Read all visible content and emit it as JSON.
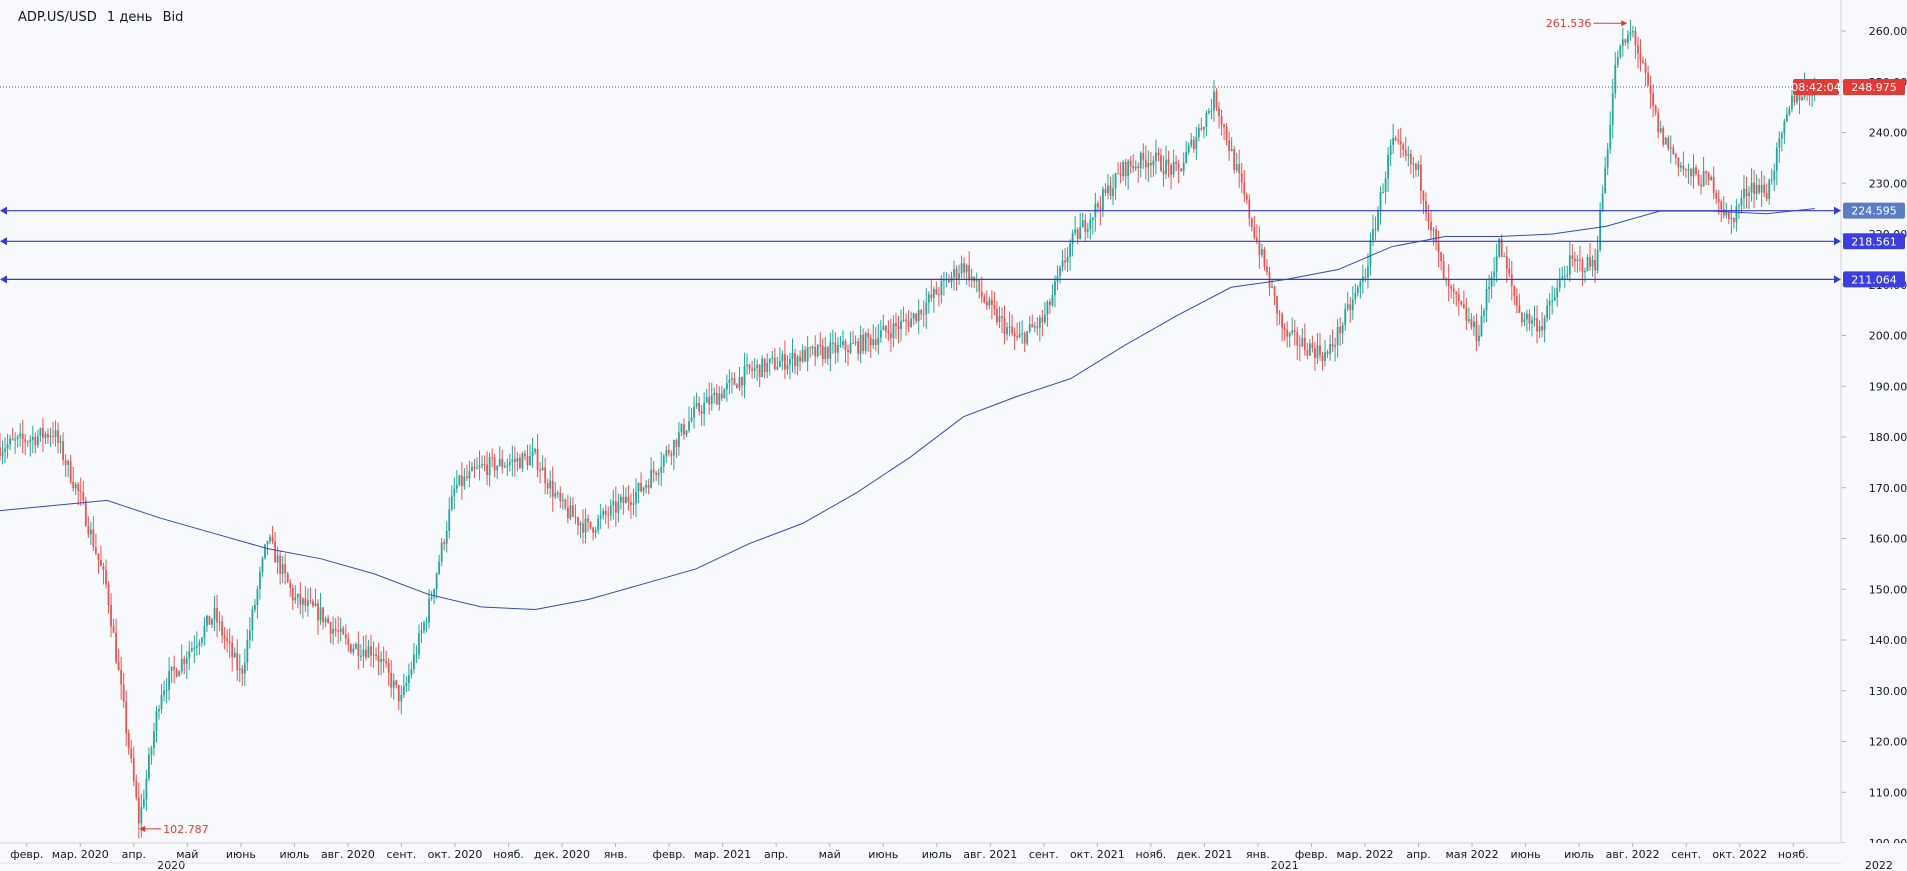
{
  "header": {
    "symbol": "ADP.US/USD",
    "interval": "1 день",
    "price_type": "Bid"
  },
  "price_panel": {
    "last_price": "248.975",
    "countdown": "08:42:04"
  },
  "colors": {
    "up": "#26a69a",
    "down": "#ef5350",
    "ma": "#2f4fae",
    "hline": "#2e3bd6",
    "grid": "#e0e3eb"
  },
  "chart_data": {
    "type": "candlestick",
    "y_axis": {
      "min": 100,
      "max": 265,
      "ticks": [
        100,
        110,
        120,
        130,
        140,
        150,
        160,
        170,
        180,
        190,
        200,
        210,
        220,
        230,
        240,
        250,
        260
      ],
      "tick_labels": [
        "100.00",
        "110.00",
        "120.00",
        "130.00",
        "140.00",
        "150.00",
        "160.00",
        "170.00",
        "180.00",
        "190.00",
        "200.00",
        "210.00",
        "220.00",
        "230.00",
        "240.00",
        "250.00",
        "260.00"
      ]
    },
    "x_axis": {
      "months": [
        "февр.",
        "мар. 2020",
        "апр.",
        "май",
        "июнь",
        "июль",
        "авг. 2020",
        "сент.",
        "окт. 2020",
        "нояб.",
        "дек. 2020",
        "янв.",
        "февр.",
        "мар. 2021",
        "апр.",
        "май",
        "июнь",
        "июль",
        "авг. 2021",
        "сент.",
        "окт. 2021",
        "нояб.",
        "дек. 2021",
        "янв.",
        "февр.",
        "мар. 2022",
        "апр.",
        "мая 2022",
        "июнь",
        "июль",
        "авг. 2022",
        "сент.",
        "окт. 2022",
        "нояб."
      ],
      "years": [
        "2020",
        "2021",
        "2022"
      ]
    },
    "price_trajectory": [
      {
        "t": 0,
        "v": 178
      },
      {
        "t": 1,
        "v": 181
      },
      {
        "t": 1.5,
        "v": 168
      },
      {
        "t": 2,
        "v": 150
      },
      {
        "t": 2.6,
        "v": 104
      },
      {
        "t": 3,
        "v": 130
      },
      {
        "t": 4,
        "v": 145
      },
      {
        "t": 4.5,
        "v": 133
      },
      {
        "t": 5,
        "v": 160
      },
      {
        "t": 5.5,
        "v": 148
      },
      {
        "t": 6,
        "v": 145
      },
      {
        "t": 6.5,
        "v": 139
      },
      {
        "t": 7,
        "v": 138
      },
      {
        "t": 7.5,
        "v": 128
      },
      {
        "t": 8,
        "v": 146
      },
      {
        "t": 8.5,
        "v": 170
      },
      {
        "t": 9,
        "v": 174
      },
      {
        "t": 10,
        "v": 176
      },
      {
        "t": 10.5,
        "v": 166
      },
      {
        "t": 11,
        "v": 162
      },
      {
        "t": 12,
        "v": 170
      },
      {
        "t": 13,
        "v": 185
      },
      {
        "t": 14,
        "v": 193
      },
      {
        "t": 15,
        "v": 196
      },
      {
        "t": 16,
        "v": 198
      },
      {
        "t": 17,
        "v": 203
      },
      {
        "t": 18,
        "v": 214
      },
      {
        "t": 18.5,
        "v": 205
      },
      {
        "t": 19,
        "v": 199
      },
      {
        "t": 19.5,
        "v": 203
      },
      {
        "t": 20,
        "v": 218
      },
      {
        "t": 21,
        "v": 233
      },
      {
        "t": 21.5,
        "v": 235
      },
      {
        "t": 22,
        "v": 232
      },
      {
        "t": 22.7,
        "v": 247
      },
      {
        "t": 23,
        "v": 236
      },
      {
        "t": 23.5,
        "v": 218
      },
      {
        "t": 24,
        "v": 200
      },
      {
        "t": 24.8,
        "v": 196
      },
      {
        "t": 25.5,
        "v": 212
      },
      {
        "t": 26,
        "v": 238
      },
      {
        "t": 26.5,
        "v": 232
      },
      {
        "t": 27,
        "v": 210
      },
      {
        "t": 27.6,
        "v": 200
      },
      {
        "t": 28,
        "v": 218
      },
      {
        "t": 28.4,
        "v": 204
      },
      {
        "t": 28.8,
        "v": 202
      },
      {
        "t": 29.3,
        "v": 214
      },
      {
        "t": 29.8,
        "v": 214
      },
      {
        "t": 30.2,
        "v": 255
      },
      {
        "t": 30.5,
        "v": 260
      },
      {
        "t": 31,
        "v": 240
      },
      {
        "t": 31.5,
        "v": 232
      },
      {
        "t": 32,
        "v": 230
      },
      {
        "t": 32.3,
        "v": 222
      },
      {
        "t": 32.7,
        "v": 230
      },
      {
        "t": 33,
        "v": 228
      },
      {
        "t": 33.5,
        "v": 247
      },
      {
        "t": 33.9,
        "v": 248.975
      }
    ],
    "series": [
      {
        "name": "",
        "kind": "moving_average",
        "points": [
          {
            "t": 0,
            "v": 165.5
          },
          {
            "t": 2,
            "v": 167.5
          },
          {
            "t": 3,
            "v": 164
          },
          {
            "t": 4,
            "v": 161
          },
          {
            "t": 5,
            "v": 158
          },
          {
            "t": 6,
            "v": 156
          },
          {
            "t": 7,
            "v": 153
          },
          {
            "t": 8,
            "v": 149
          },
          {
            "t": 9,
            "v": 146.5
          },
          {
            "t": 10,
            "v": 146
          },
          {
            "t": 11,
            "v": 148
          },
          {
            "t": 12,
            "v": 151
          },
          {
            "t": 13,
            "v": 154
          },
          {
            "t": 14,
            "v": 159
          },
          {
            "t": 15,
            "v": 163
          },
          {
            "t": 16,
            "v": 169
          },
          {
            "t": 17,
            "v": 176
          },
          {
            "t": 18,
            "v": 184
          },
          {
            "t": 19,
            "v": 188
          },
          {
            "t": 20,
            "v": 191.5
          },
          {
            "t": 21,
            "v": 198
          },
          {
            "t": 22,
            "v": 204
          },
          {
            "t": 23,
            "v": 209.5
          },
          {
            "t": 24,
            "v": 211
          },
          {
            "t": 25,
            "v": 213
          },
          {
            "t": 26,
            "v": 217.5
          },
          {
            "t": 27,
            "v": 219.5
          },
          {
            "t": 28,
            "v": 219.5
          },
          {
            "t": 29,
            "v": 220
          },
          {
            "t": 30,
            "v": 221.5
          },
          {
            "t": 31,
            "v": 224.5
          },
          {
            "t": 32,
            "v": 224.5
          },
          {
            "t": 33,
            "v": 224
          },
          {
            "t": 33.9,
            "v": 225
          }
        ]
      }
    ],
    "levels": [
      {
        "value": 224.595,
        "label": "224.595"
      },
      {
        "value": 218.561,
        "label": "218.561"
      },
      {
        "value": 211.064,
        "label": "211.064"
      }
    ],
    "current_price": {
      "value": 248.975,
      "label": "248.975"
    },
    "annotations": [
      {
        "label": "261.536",
        "value": 261.536,
        "t": 30.4,
        "kind": "high"
      },
      {
        "label": "102.787",
        "value": 102.787,
        "t": 2.6,
        "kind": "low"
      }
    ]
  }
}
